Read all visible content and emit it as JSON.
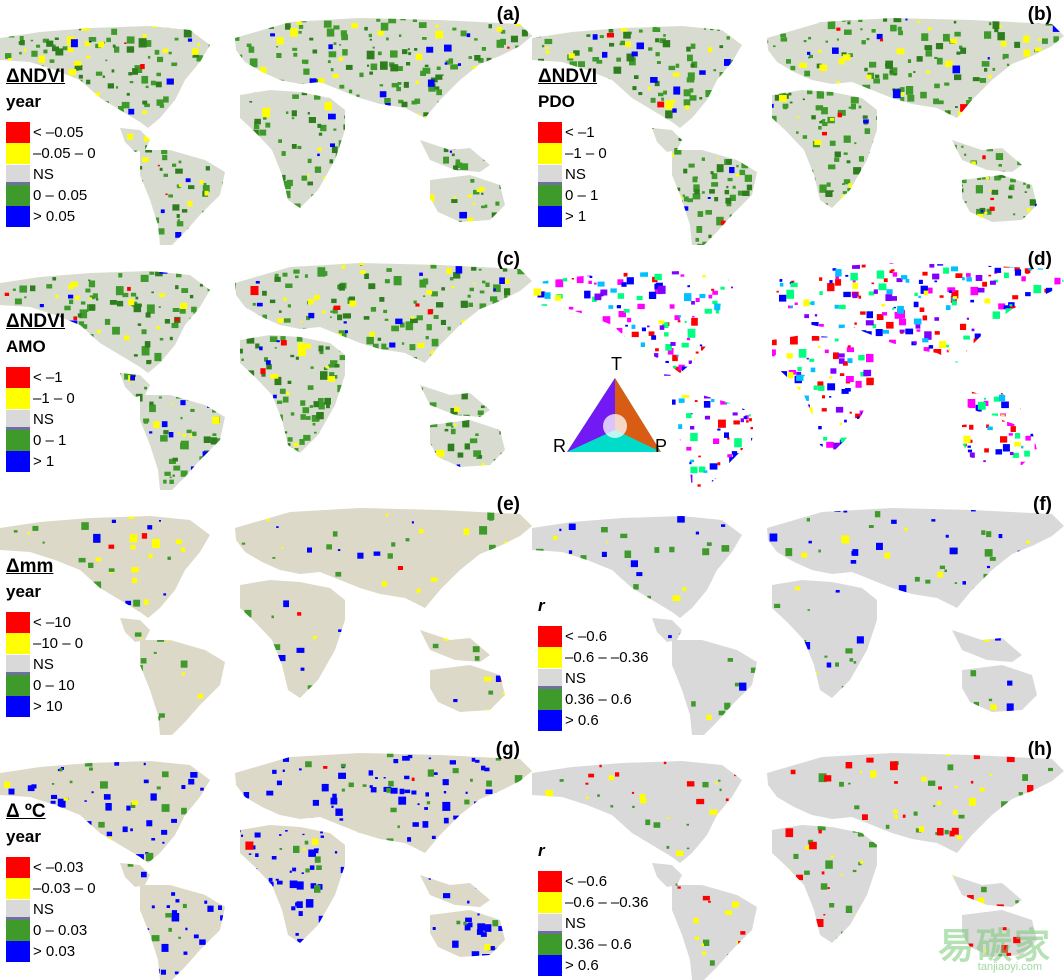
{
  "panels": [
    {
      "label": "(a)",
      "title": "ΔNDVI",
      "subtitle": "year",
      "italic": false,
      "palette": "ndvi",
      "legend": [
        {
          "color": "#ff0000",
          "text": "< –0.05"
        },
        {
          "color": "#ffff00",
          "text": "–0.05 – 0"
        },
        {
          "color": "#d9d9d9",
          "text": "NS",
          "ns": true
        },
        {
          "color": "#3f9a2c",
          "text": "0 – 0.05"
        },
        {
          "color": "#0000ff",
          "text": "> 0.05"
        }
      ]
    },
    {
      "label": "(b)",
      "title": "ΔNDVI",
      "subtitle": "PDO",
      "italic": false,
      "palette": "ndvi",
      "legend": [
        {
          "color": "#ff0000",
          "text": "< –1"
        },
        {
          "color": "#ffff00",
          "text": "–1 – 0"
        },
        {
          "color": "#d9d9d9",
          "text": "NS",
          "ns": true
        },
        {
          "color": "#3f9a2c",
          "text": "0 – 1"
        },
        {
          "color": "#0000ff",
          "text": "> 1"
        }
      ]
    },
    {
      "label": "(c)",
      "title": "ΔNDVI",
      "subtitle": "AMO",
      "italic": false,
      "palette": "ndvi",
      "legend": [
        {
          "color": "#ff0000",
          "text": "< –1"
        },
        {
          "color": "#ffff00",
          "text": "–1 – 0"
        },
        {
          "color": "#d9d9d9",
          "text": "NS",
          "ns": true
        },
        {
          "color": "#3f9a2c",
          "text": "0 – 1"
        },
        {
          "color": "#0000ff",
          "text": "> 1"
        }
      ]
    },
    {
      "label": "(d)",
      "title": "",
      "subtitle": "",
      "italic": false,
      "palette": "rgb",
      "legend": []
    },
    {
      "label": "(e)",
      "title": "Δmm",
      "subtitle": "year",
      "italic": false,
      "palette": "precip",
      "legend": [
        {
          "color": "#ff0000",
          "text": "< –10"
        },
        {
          "color": "#ffff00",
          "text": "–10 – 0"
        },
        {
          "color": "#d9d9d9",
          "text": "NS",
          "ns": true
        },
        {
          "color": "#3f9a2c",
          "text": "0 – 10"
        },
        {
          "color": "#0000ff",
          "text": "> 10"
        }
      ]
    },
    {
      "label": "(f)",
      "title": "",
      "subtitle": "r",
      "italic": true,
      "palette": "corrP",
      "legend": [
        {
          "color": "#ff0000",
          "text": "< –0.6"
        },
        {
          "color": "#ffff00",
          "text": "–0.6 – –0.36"
        },
        {
          "color": "#d9d9d9",
          "text": "NS",
          "ns": true
        },
        {
          "color": "#3f9a2c",
          "text": "0.36 – 0.6"
        },
        {
          "color": "#0000ff",
          "text": "> 0.6"
        }
      ]
    },
    {
      "label": "(g)",
      "title": "Δ ºC",
      "subtitle": "year",
      "italic": false,
      "palette": "temp",
      "legend": [
        {
          "color": "#ff0000",
          "text": "< –0.03"
        },
        {
          "color": "#ffff00",
          "text": "–0.03 – 0"
        },
        {
          "color": "#d9d9d9",
          "text": "NS",
          "ns": true
        },
        {
          "color": "#3f9a2c",
          "text": "0 – 0.03"
        },
        {
          "color": "#0000ff",
          "text": "> 0.03"
        }
      ]
    },
    {
      "label": "(h)",
      "title": "",
      "subtitle": "r",
      "italic": true,
      "palette": "corrT",
      "legend": [
        {
          "color": "#ff0000",
          "text": "< –0.6"
        },
        {
          "color": "#ffff00",
          "text": "–0.6 – –0.36"
        },
        {
          "color": "#d9d9d9",
          "text": "NS",
          "ns": true
        },
        {
          "color": "#3f9a2c",
          "text": "0.36 – 0.6"
        },
        {
          "color": "#0000ff",
          "text": "> 0.6"
        }
      ]
    }
  ],
  "triangle_key": {
    "top": "T",
    "left": "R",
    "right": "P"
  },
  "watermark": {
    "text": "易碳家",
    "sub": "tanjiaoyi.com"
  }
}
